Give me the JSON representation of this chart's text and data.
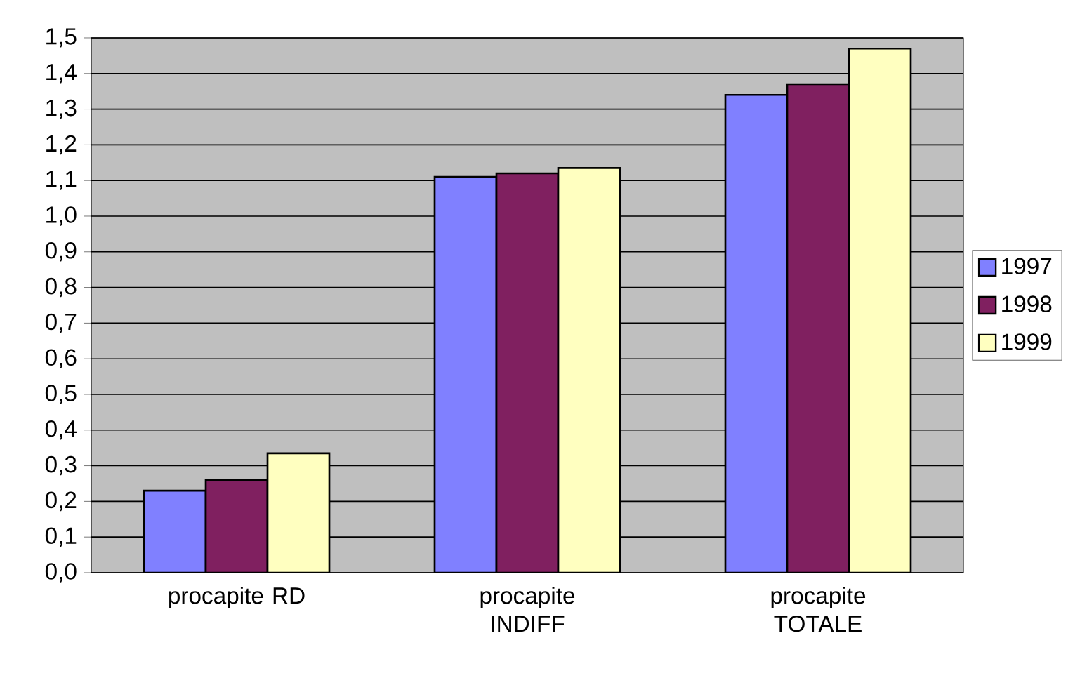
{
  "chart_data": {
    "type": "bar",
    "categories": [
      "procapite RD",
      "procapite INDIFF",
      "procapite TOTALE"
    ],
    "series": [
      {
        "name": "1997",
        "color": "#8080ff",
        "values": [
          0.23,
          1.11,
          1.34
        ]
      },
      {
        "name": "1998",
        "color": "#802060",
        "values": [
          0.26,
          1.12,
          1.37
        ]
      },
      {
        "name": "1999",
        "color": "#ffffc0",
        "values": [
          0.335,
          1.135,
          1.47
        ]
      }
    ],
    "ylim": [
      0,
      1.5
    ],
    "yticks": [
      {
        "value": 0,
        "label": "0,0"
      },
      {
        "value": 0.1,
        "label": "0,1"
      },
      {
        "value": 0.2,
        "label": "0,2"
      },
      {
        "value": 0.3,
        "label": "0,3"
      },
      {
        "value": 0.4,
        "label": "0,4"
      },
      {
        "value": 0.5,
        "label": "0,5"
      },
      {
        "value": 0.6,
        "label": "0,6"
      },
      {
        "value": 0.7,
        "label": "0,7"
      },
      {
        "value": 0.8,
        "label": "0,8"
      },
      {
        "value": 0.9,
        "label": "0,9"
      },
      {
        "value": 1.0,
        "label": "1,0"
      },
      {
        "value": 1.1,
        "label": "1,1"
      },
      {
        "value": 1.2,
        "label": "1,2"
      },
      {
        "value": 1.3,
        "label": "1,3"
      },
      {
        "value": 1.4,
        "label": "1,4"
      },
      {
        "value": 1.5,
        "label": "1,5"
      }
    ],
    "grid": "y",
    "legend": "right"
  }
}
